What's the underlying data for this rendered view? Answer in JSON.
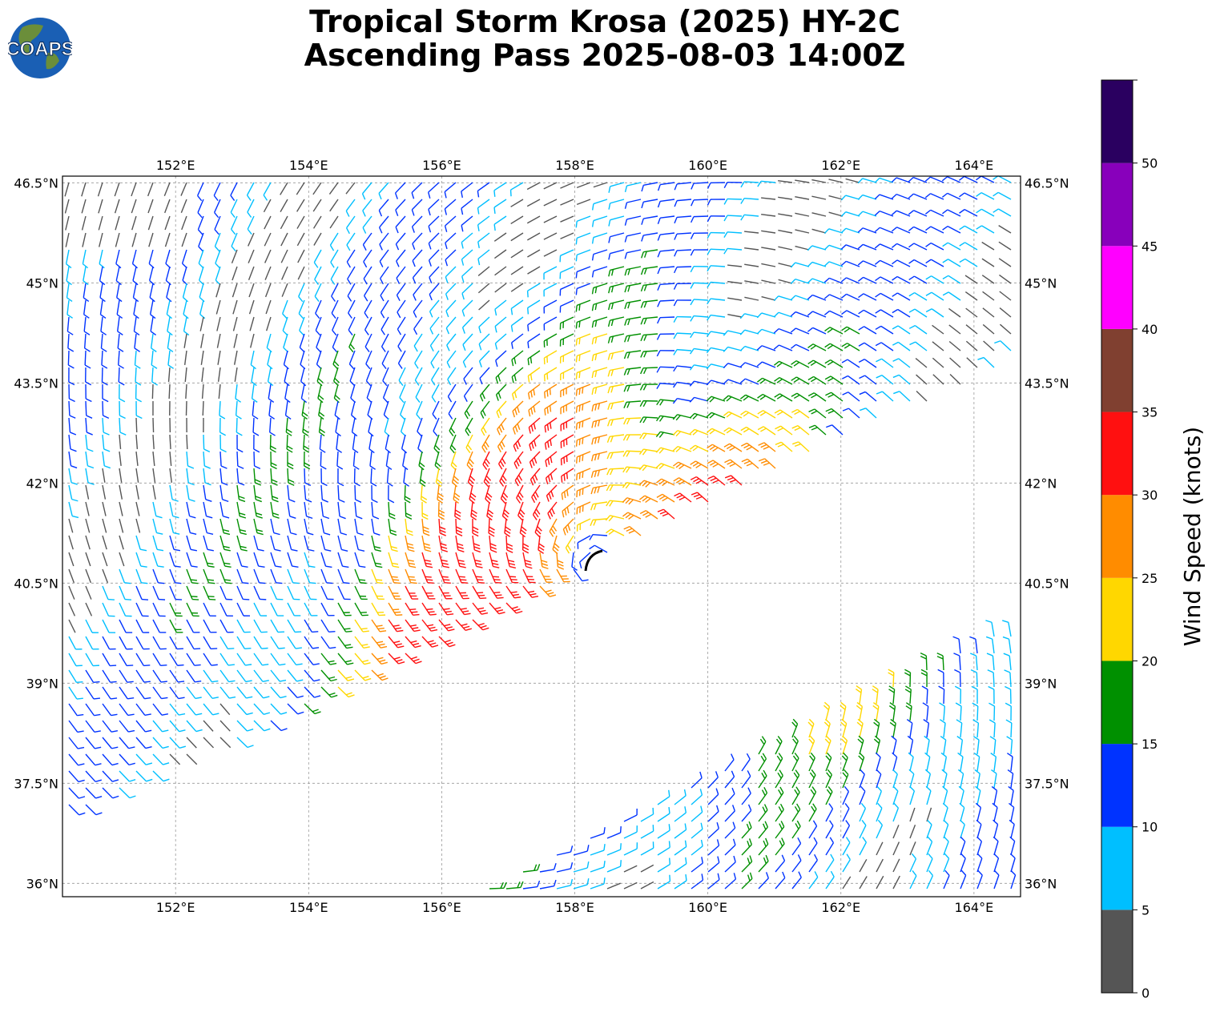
{
  "title": {
    "line1": "Tropical Storm Krosa (2025) HY-2C",
    "line2": "Ascending Pass 2025-08-03 14:00Z"
  },
  "logo": {
    "text": "COAPS",
    "ocean_color": "#1a5fb4",
    "land_color": "#6b8e3a"
  },
  "map": {
    "lon_range": [
      150.3,
      164.7
    ],
    "lat_range": [
      35.8,
      46.6
    ],
    "lon_ticks": [
      "152°E",
      "154°E",
      "156°E",
      "158°E",
      "160°E",
      "162°E",
      "164°E"
    ],
    "lat_ticks": [
      "36°N",
      "37.5°N",
      "39°N",
      "40.5°N",
      "42°N",
      "43.5°N",
      "45°N",
      "46.5°N"
    ],
    "gridlines": true,
    "storm_center": {
      "lon": 158.3,
      "lat": 40.8
    }
  },
  "colorbar": {
    "label": "Wind Speed (knots)",
    "ticks": [
      "0",
      "5",
      "10",
      "15",
      "20",
      "25",
      "30",
      "35",
      "40",
      "45",
      "50"
    ],
    "bins": [
      {
        "min": 0,
        "max": 5,
        "color": "#555555"
      },
      {
        "min": 5,
        "max": 10,
        "color": "#00bfff"
      },
      {
        "min": 10,
        "max": 15,
        "color": "#0033ff"
      },
      {
        "min": 15,
        "max": 20,
        "color": "#009000"
      },
      {
        "min": 20,
        "max": 25,
        "color": "#ffd700"
      },
      {
        "min": 25,
        "max": 30,
        "color": "#ff8c00"
      },
      {
        "min": 30,
        "max": 35,
        "color": "#ff1010"
      },
      {
        "min": 35,
        "max": 40,
        "color": "#804030"
      },
      {
        "min": 40,
        "max": 45,
        "color": "#ff00ff"
      },
      {
        "min": 45,
        "max": 50,
        "color": "#8800bb"
      },
      {
        "min": 50,
        "max": 55,
        "color": "#2a0060"
      }
    ]
  }
}
